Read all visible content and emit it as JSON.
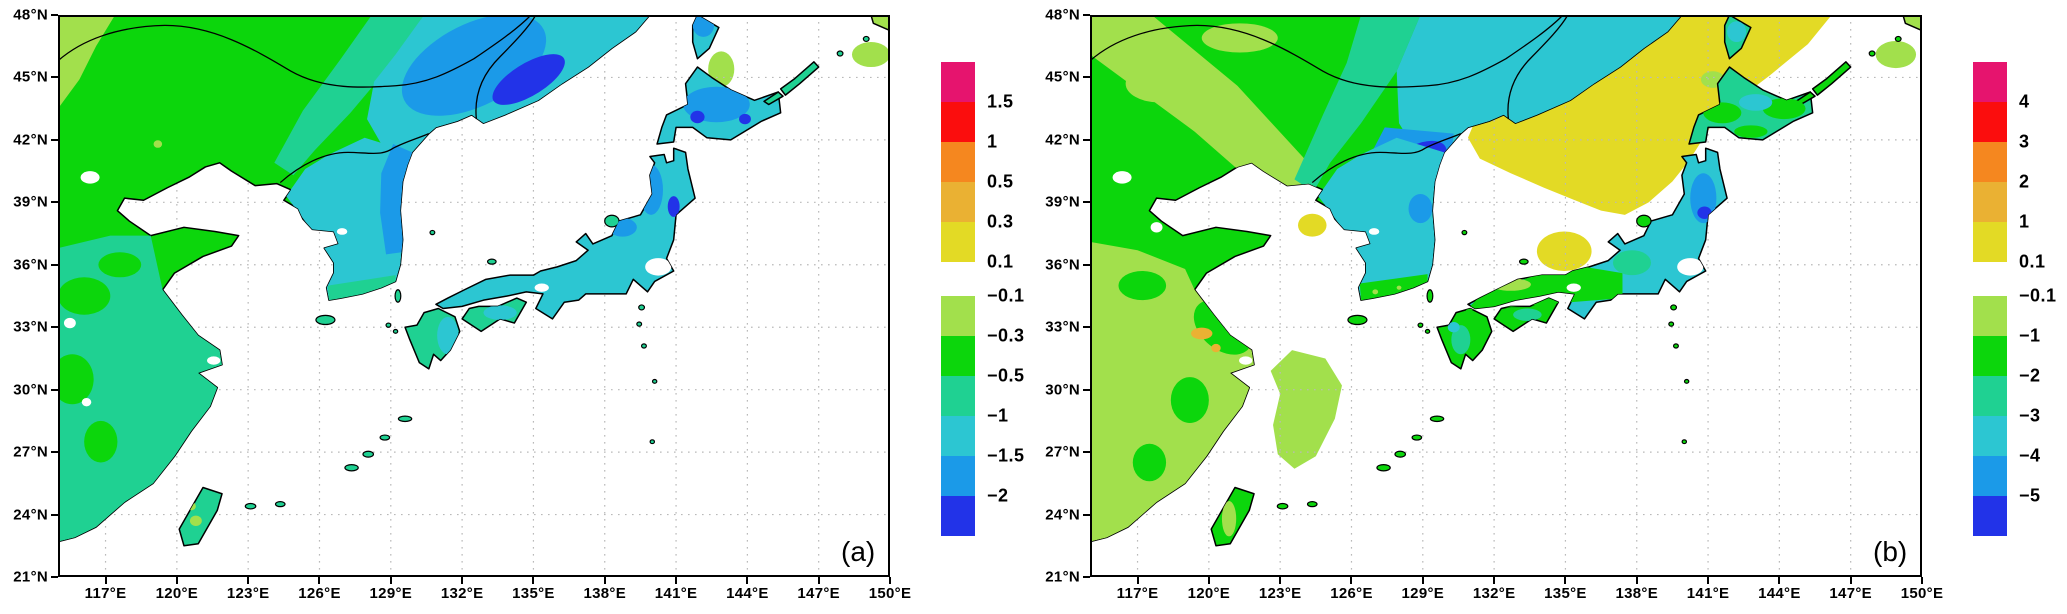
{
  "figure": {
    "background": "#ffffff",
    "panels": [
      {
        "label": "(a)",
        "x_tick_labels": [
          "117°E",
          "120°E",
          "123°E",
          "126°E",
          "129°E",
          "132°E",
          "135°E",
          "138°E",
          "141°E",
          "144°E",
          "147°E",
          "150°E"
        ],
        "y_tick_labels": [
          "48°N",
          "45°N",
          "42°N",
          "39°N",
          "36°N",
          "33°N",
          "30°N",
          "27°N",
          "24°N",
          "21°N"
        ],
        "colorbar": {
          "positive_labels": [
            "1.5",
            "1",
            "0.5",
            "0.3",
            "0.1"
          ],
          "negative_labels": [
            "−0.1",
            "−0.3",
            "−0.5",
            "−1",
            "−1.5",
            "−2"
          ]
        }
      },
      {
        "label": "(b)",
        "x_tick_labels": [
          "117°E",
          "120°E",
          "123°E",
          "126°E",
          "129°E",
          "132°E",
          "135°E",
          "138°E",
          "141°E",
          "144°E",
          "147°E",
          "150°E"
        ],
        "y_tick_labels": [
          "48°N",
          "45°N",
          "42°N",
          "39°N",
          "36°N",
          "33°N",
          "30°N",
          "27°N",
          "24°N",
          "21°N"
        ],
        "colorbar": {
          "positive_labels": [
            "4",
            "3",
            "2",
            "1",
            "0.1"
          ],
          "negative_labels": [
            "−0.1",
            "−1",
            "−2",
            "−3",
            "−4",
            "−5"
          ]
        }
      }
    ],
    "colorbar_colors": {
      "positive_top_to_bottom": [
        "#e6146e",
        "#fb0d0d",
        "#f5871f",
        "#eab133",
        "#e3da25"
      ],
      "negative_top_to_bottom": [
        "#a2e04c",
        "#0cd60c",
        "#1fd192",
        "#2cc6d2",
        "#1b9ae8",
        "#2233e8"
      ]
    },
    "map_palette": {
      "ocean": "#ffffff",
      "yellow_green": "#a2e04c",
      "green": "#0cd60c",
      "teal_green": "#1fd192",
      "cyan": "#2cc6d2",
      "azure": "#1b9ae8",
      "blue": "#2233e8",
      "yellow": "#e3da25",
      "orange_yellow": "#eab133",
      "coastline": "#000000",
      "grid": "#b9b9b9"
    }
  }
}
